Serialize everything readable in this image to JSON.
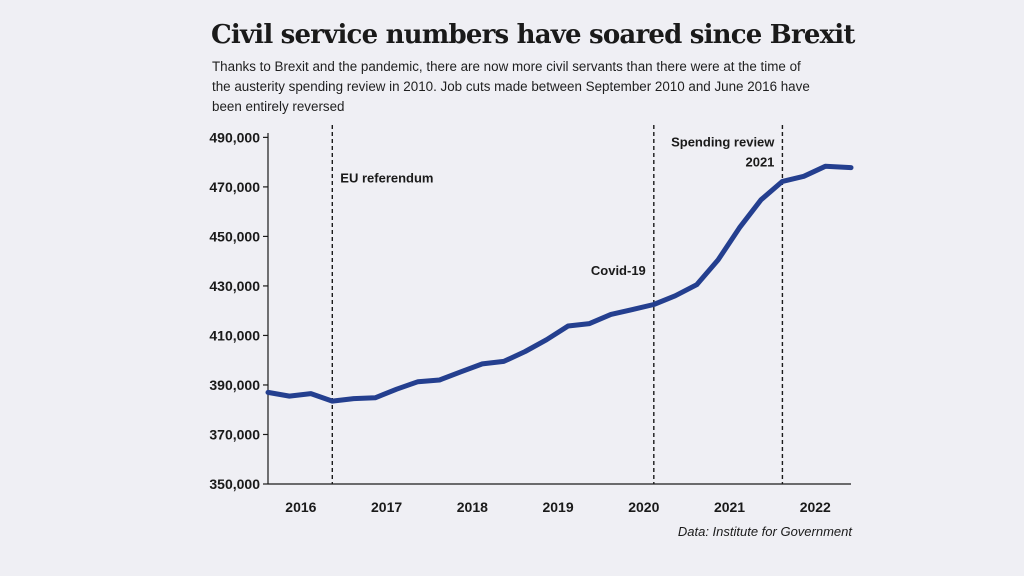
{
  "title": "Civil service numbers have soared since Brexit",
  "subtitle": "Thanks to Brexit and the pandemic, there are now more civil servants than there were at the time of the austerity spending review in 2010. Job cuts made between September 2010 and June 2016 have been entirely reversed",
  "source": "Data: Institute for Government",
  "colors": {
    "line": "#243f8f",
    "axis": "#1a1a1a",
    "background": "#efeff4"
  },
  "chart_data": {
    "type": "line",
    "title": "Civil service numbers have soared since Brexit",
    "xlabel": "",
    "ylabel": "",
    "xlim": [
      2015.5,
      2022.3
    ],
    "ylim": [
      350000,
      495000
    ],
    "y_ticks": [
      350000,
      370000,
      390000,
      410000,
      430000,
      450000,
      470000,
      490000
    ],
    "y_tick_labels": [
      "350,000",
      "370,000",
      "390,000",
      "410,000",
      "430,000",
      "450,000",
      "470,000",
      "490,000"
    ],
    "x_ticks": [
      2016,
      2017,
      2018,
      2019,
      2020,
      2021,
      2022
    ],
    "x_tick_labels": [
      "2016",
      "2017",
      "2018",
      "2019",
      "2020",
      "2021",
      "2022"
    ],
    "grid": false,
    "series": [
      {
        "x": [
          2015.5,
          2015.75,
          2016.0,
          2016.25,
          2016.5,
          2016.75,
          2017.0,
          2017.25,
          2017.5,
          2017.75,
          2018.0,
          2018.25,
          2018.5,
          2018.75,
          2019.0,
          2019.25,
          2019.5,
          2019.75,
          2020.0,
          2020.25,
          2020.5,
          2020.75,
          2021.0,
          2021.25,
          2021.5,
          2021.75,
          2022.0,
          2022.3
        ],
        "y": [
          387000,
          385500,
          386500,
          383500,
          384500,
          384800,
          388300,
          391300,
          392000,
          395300,
          398500,
          399500,
          403500,
          408300,
          413800,
          414800,
          418500,
          420500,
          422500,
          426000,
          430500,
          440500,
          453500,
          464800,
          472200,
          474300,
          478300,
          477800
        ]
      }
    ],
    "annotations": [
      {
        "x": 2016.25,
        "lines": [
          "EU referendum"
        ],
        "align": "start",
        "y": 471800
      },
      {
        "x": 2020.0,
        "lines": [
          "Covid-19"
        ],
        "align": "end",
        "y": 434500
      },
      {
        "x": 2021.5,
        "lines": [
          "Spending review",
          "2021"
        ],
        "align": "end",
        "y": 486400
      }
    ]
  }
}
